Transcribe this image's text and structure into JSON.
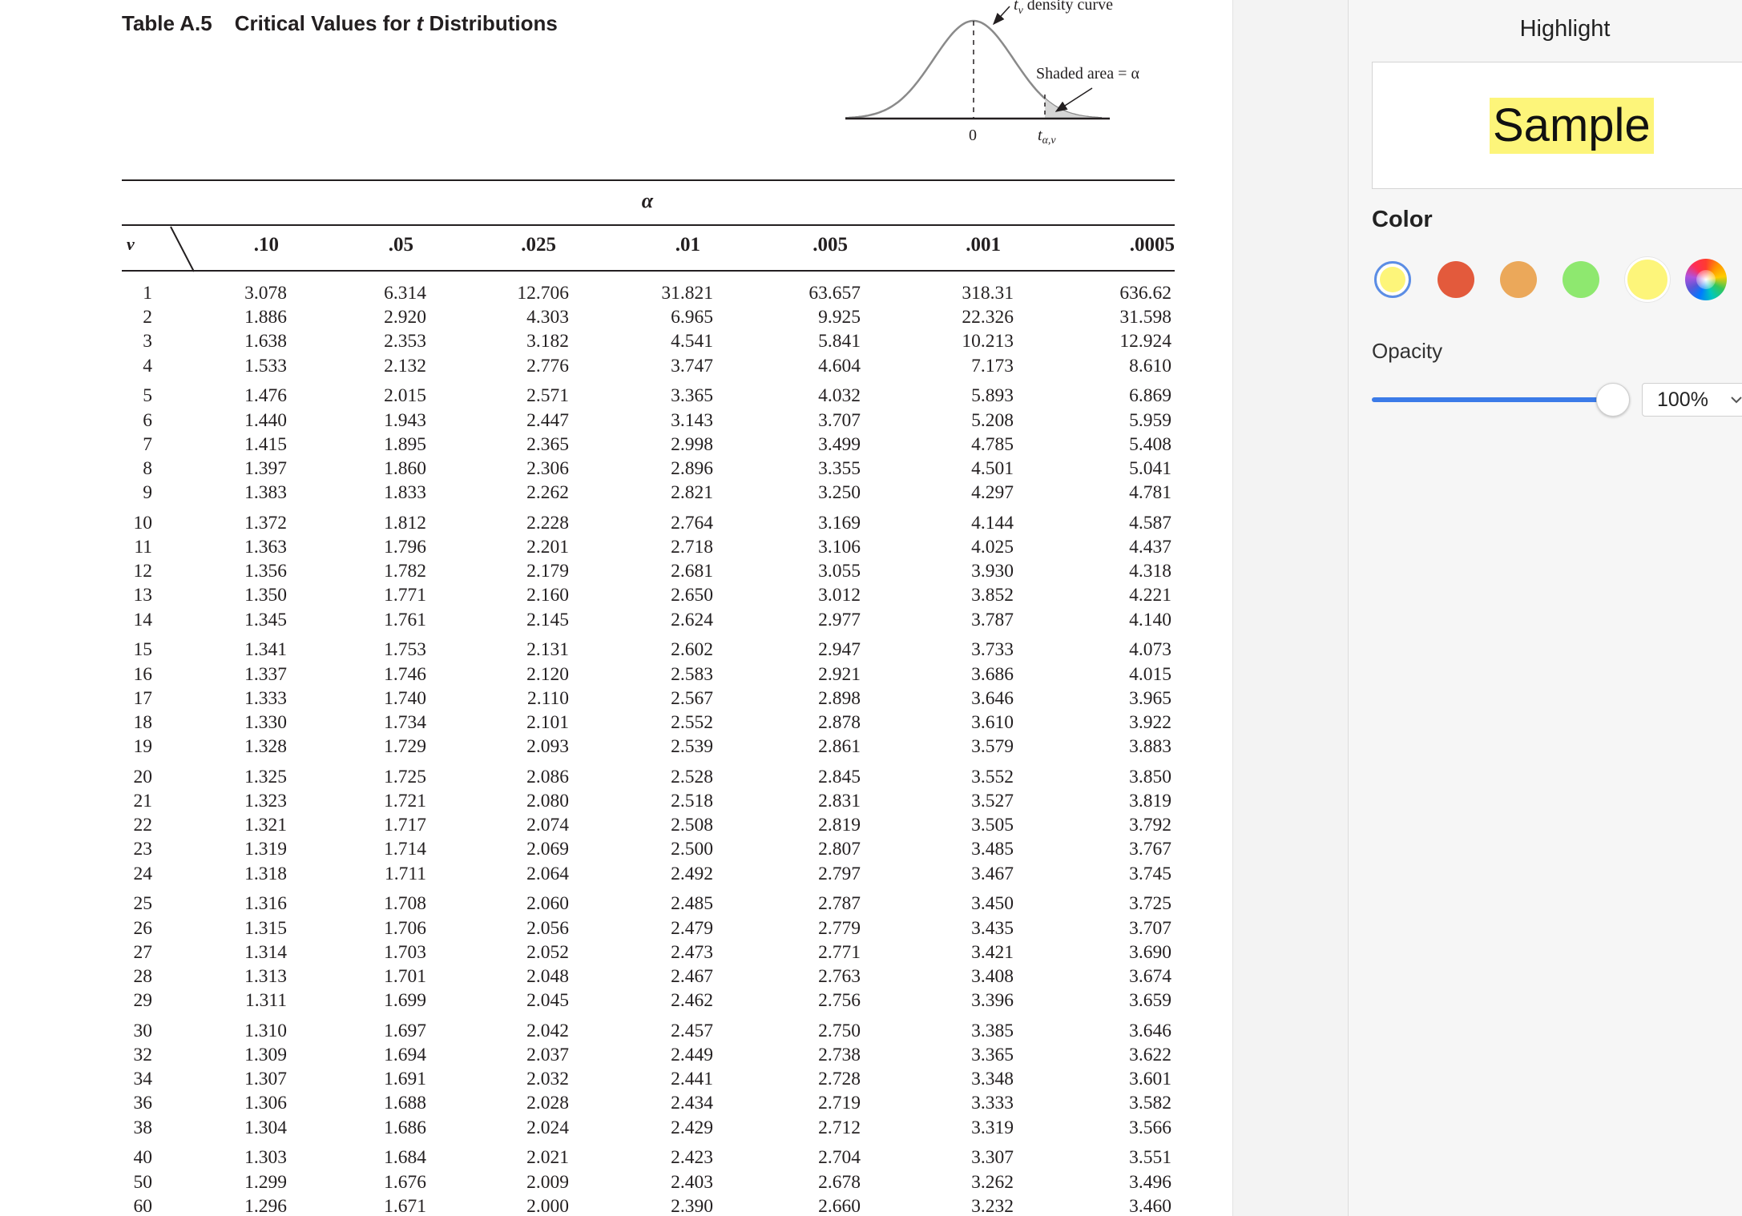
{
  "document": {
    "table_number": "Table A.5",
    "table_name_prefix": "Critical Values for ",
    "table_name_var": "t",
    "table_name_suffix": " Distributions",
    "figure": {
      "curve_label_var": "t",
      "curve_label_sub": "ν",
      "curve_label_text": " density curve",
      "shaded_label": "Shaded area = α",
      "zero_label": "0",
      "critical_label_var": "t",
      "critical_label_sub": "α,ν"
    },
    "alpha_label": "α",
    "nu_label": "ν",
    "alpha_columns": [
      ".10",
      ".05",
      ".025",
      ".01",
      ".005",
      ".001",
      ".0005"
    ],
    "row_groups": [
      [
        [
          "1",
          "3.078",
          "6.314",
          "12.706",
          "31.821",
          "63.657",
          "318.31",
          "636.62"
        ],
        [
          "2",
          "1.886",
          "2.920",
          "4.303",
          "6.965",
          "9.925",
          "22.326",
          "31.598"
        ],
        [
          "3",
          "1.638",
          "2.353",
          "3.182",
          "4.541",
          "5.841",
          "10.213",
          "12.924"
        ],
        [
          "4",
          "1.533",
          "2.132",
          "2.776",
          "3.747",
          "4.604",
          "7.173",
          "8.610"
        ]
      ],
      [
        [
          "5",
          "1.476",
          "2.015",
          "2.571",
          "3.365",
          "4.032",
          "5.893",
          "6.869"
        ],
        [
          "6",
          "1.440",
          "1.943",
          "2.447",
          "3.143",
          "3.707",
          "5.208",
          "5.959"
        ],
        [
          "7",
          "1.415",
          "1.895",
          "2.365",
          "2.998",
          "3.499",
          "4.785",
          "5.408"
        ],
        [
          "8",
          "1.397",
          "1.860",
          "2.306",
          "2.896",
          "3.355",
          "4.501",
          "5.041"
        ],
        [
          "9",
          "1.383",
          "1.833",
          "2.262",
          "2.821",
          "3.250",
          "4.297",
          "4.781"
        ]
      ],
      [
        [
          "10",
          "1.372",
          "1.812",
          "2.228",
          "2.764",
          "3.169",
          "4.144",
          "4.587"
        ],
        [
          "11",
          "1.363",
          "1.796",
          "2.201",
          "2.718",
          "3.106",
          "4.025",
          "4.437"
        ],
        [
          "12",
          "1.356",
          "1.782",
          "2.179",
          "2.681",
          "3.055",
          "3.930",
          "4.318"
        ],
        [
          "13",
          "1.350",
          "1.771",
          "2.160",
          "2.650",
          "3.012",
          "3.852",
          "4.221"
        ],
        [
          "14",
          "1.345",
          "1.761",
          "2.145",
          "2.624",
          "2.977",
          "3.787",
          "4.140"
        ]
      ],
      [
        [
          "15",
          "1.341",
          "1.753",
          "2.131",
          "2.602",
          "2.947",
          "3.733",
          "4.073"
        ],
        [
          "16",
          "1.337",
          "1.746",
          "2.120",
          "2.583",
          "2.921",
          "3.686",
          "4.015"
        ],
        [
          "17",
          "1.333",
          "1.740",
          "2.110",
          "2.567",
          "2.898",
          "3.646",
          "3.965"
        ],
        [
          "18",
          "1.330",
          "1.734",
          "2.101",
          "2.552",
          "2.878",
          "3.610",
          "3.922"
        ],
        [
          "19",
          "1.328",
          "1.729",
          "2.093",
          "2.539",
          "2.861",
          "3.579",
          "3.883"
        ]
      ],
      [
        [
          "20",
          "1.325",
          "1.725",
          "2.086",
          "2.528",
          "2.845",
          "3.552",
          "3.850"
        ],
        [
          "21",
          "1.323",
          "1.721",
          "2.080",
          "2.518",
          "2.831",
          "3.527",
          "3.819"
        ],
        [
          "22",
          "1.321",
          "1.717",
          "2.074",
          "2.508",
          "2.819",
          "3.505",
          "3.792"
        ],
        [
          "23",
          "1.319",
          "1.714",
          "2.069",
          "2.500",
          "2.807",
          "3.485",
          "3.767"
        ],
        [
          "24",
          "1.318",
          "1.711",
          "2.064",
          "2.492",
          "2.797",
          "3.467",
          "3.745"
        ]
      ],
      [
        [
          "25",
          "1.316",
          "1.708",
          "2.060",
          "2.485",
          "2.787",
          "3.450",
          "3.725"
        ],
        [
          "26",
          "1.315",
          "1.706",
          "2.056",
          "2.479",
          "2.779",
          "3.435",
          "3.707"
        ],
        [
          "27",
          "1.314",
          "1.703",
          "2.052",
          "2.473",
          "2.771",
          "3.421",
          "3.690"
        ],
        [
          "28",
          "1.313",
          "1.701",
          "2.048",
          "2.467",
          "2.763",
          "3.408",
          "3.674"
        ],
        [
          "29",
          "1.311",
          "1.699",
          "2.045",
          "2.462",
          "2.756",
          "3.396",
          "3.659"
        ]
      ],
      [
        [
          "30",
          "1.310",
          "1.697",
          "2.042",
          "2.457",
          "2.750",
          "3.385",
          "3.646"
        ],
        [
          "32",
          "1.309",
          "1.694",
          "2.037",
          "2.449",
          "2.738",
          "3.365",
          "3.622"
        ],
        [
          "34",
          "1.307",
          "1.691",
          "2.032",
          "2.441",
          "2.728",
          "3.348",
          "3.601"
        ],
        [
          "36",
          "1.306",
          "1.688",
          "2.028",
          "2.434",
          "2.719",
          "3.333",
          "3.582"
        ],
        [
          "38",
          "1.304",
          "1.686",
          "2.024",
          "2.429",
          "2.712",
          "3.319",
          "3.566"
        ]
      ],
      [
        [
          "40",
          "1.303",
          "1.684",
          "2.021",
          "2.423",
          "2.704",
          "3.307",
          "3.551"
        ],
        [
          "50",
          "1.299",
          "1.676",
          "2.009",
          "2.403",
          "2.678",
          "3.262",
          "3.496"
        ],
        [
          "60",
          "1.296",
          "1.671",
          "2.000",
          "2.390",
          "2.660",
          "3.232",
          "3.460"
        ]
      ]
    ]
  },
  "panel": {
    "title": "Highlight",
    "preview_text": "Sample",
    "color_heading": "Color",
    "colors": [
      {
        "name": "yellow",
        "hex": "#fdf57a",
        "selected": true
      },
      {
        "name": "red",
        "hex": "#e35a3c",
        "selected": false
      },
      {
        "name": "orange",
        "hex": "#eba85a",
        "selected": false
      },
      {
        "name": "green",
        "hex": "#8ee86f",
        "selected": false
      },
      {
        "name": "yellow-custom",
        "hex": "#fdf57a",
        "selected": false
      }
    ],
    "custom_color_icon": "color-wheel-icon",
    "opacity_heading": "Opacity",
    "opacity_percent": 100,
    "opacity_value": "100%",
    "accent": "#3b7be8",
    "highlight_color": "#fdf57a"
  }
}
